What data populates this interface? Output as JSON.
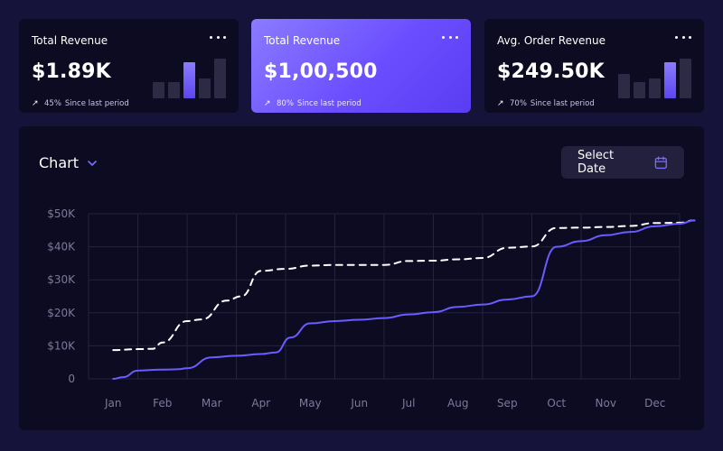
{
  "cards": [
    {
      "title": "Total Revenue",
      "value": "$1.89K",
      "percent": "45%",
      "since": "Since last period",
      "bars": [
        0.42,
        0.42,
        0.9,
        0.5,
        1.0
      ],
      "highlight": 2
    },
    {
      "title": "Total Revenue",
      "value": "$1,00,500",
      "percent": "80%",
      "since": "Since last period"
    },
    {
      "title": "Avg. Order Revenue",
      "value": "$249.50K",
      "percent": "70%",
      "since": "Since last period",
      "bars": [
        0.62,
        0.42,
        0.5,
        0.9,
        1.0
      ],
      "highlight": 3
    }
  ],
  "panel": {
    "title": "Chart",
    "date_button": "Select Date"
  },
  "icons": {
    "card_menu": "more-horizontal-icon",
    "trend": "arrow-up-right-icon",
    "dropdown": "chevron-down-icon",
    "date": "calendar-icon"
  },
  "colors": {
    "accent": "#6a5cff",
    "background": "#15133a",
    "panel": "#0c0b22"
  },
  "chart_data": {
    "type": "line",
    "x": [
      "Jan",
      "Feb",
      "Mar",
      "Apr",
      "May",
      "Jun",
      "Jul",
      "Aug",
      "Sep",
      "Oct",
      "Nov",
      "Dec"
    ],
    "y_ticks": [
      "0",
      "$10K",
      "$20K",
      "$30K",
      "$40K",
      "$50K"
    ],
    "ylim": [
      0,
      50000
    ],
    "grid": true,
    "series": [
      {
        "style": "dashed",
        "color": "#ffffff",
        "x": [
          0,
          0.5,
          0.8,
          1.0,
          1.5,
          1.8,
          2.3,
          2.6,
          3.0,
          3.5,
          4.0,
          4.5,
          5.0,
          5.5,
          6.0,
          6.5,
          7.0,
          7.5,
          8.0,
          8.5,
          9.0,
          9.5,
          10.0,
          10.5,
          11.0,
          11.5,
          11.8
        ],
        "y": [
          8700,
          9000,
          9100,
          11000,
          17500,
          18000,
          23700,
          25000,
          32700,
          33300,
          34300,
          34500,
          34500,
          34500,
          35700,
          35800,
          36200,
          36600,
          39700,
          40100,
          45700,
          45800,
          46000,
          46300,
          47200,
          47300,
          48000
        ]
      },
      {
        "style": "solid",
        "color": "#6a5cff",
        "x": [
          0,
          0.2,
          0.5,
          1.0,
          1.3,
          1.5,
          2.0,
          2.5,
          3.0,
          3.3,
          3.6,
          4.0,
          4.5,
          5.0,
          5.5,
          6.0,
          6.5,
          7.0,
          7.5,
          8.0,
          8.5,
          9.0,
          9.5,
          10.0,
          10.5,
          11.0,
          11.5,
          11.8
        ],
        "y": [
          0,
          500,
          2500,
          2800,
          2900,
          3200,
          6500,
          7000,
          7500,
          8000,
          12500,
          16800,
          17500,
          17900,
          18400,
          19500,
          20200,
          21800,
          22500,
          24000,
          25000,
          40000,
          41700,
          43500,
          44500,
          46200,
          47000,
          48000
        ]
      }
    ]
  }
}
